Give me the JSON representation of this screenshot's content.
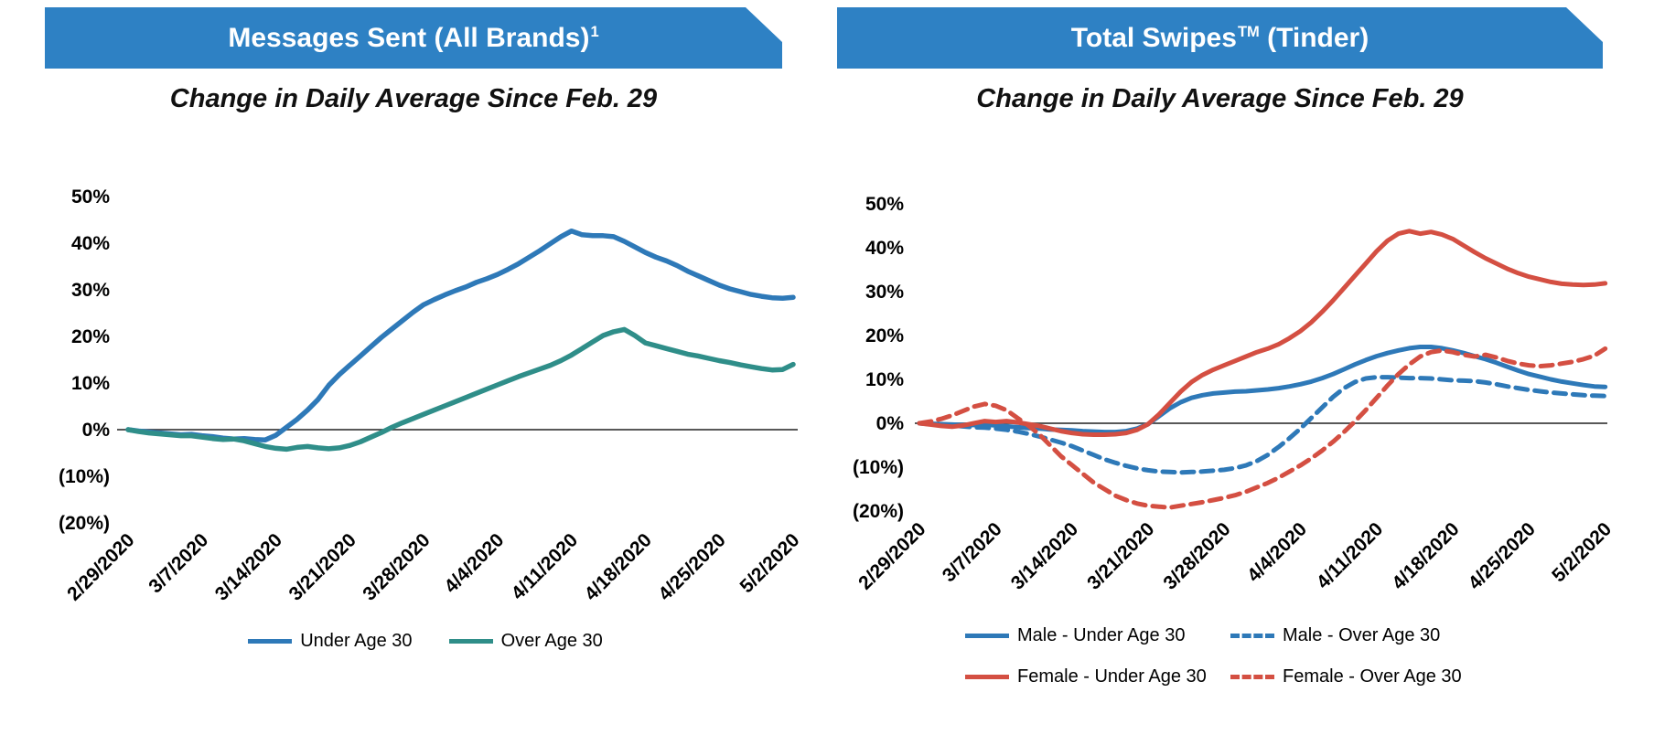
{
  "charts": [
    {
      "id": "messages-sent",
      "banner": {
        "title_main": "Messages Sent (All Brands)",
        "title_sup": "1",
        "title_end": "",
        "color": "#2E81C4",
        "text_color": "#ffffff"
      },
      "subtitle": "Change in Daily Average Since Feb. 29",
      "chart_data": {
        "type": "line",
        "x_unit": "day",
        "x_range": [
          "2/29/2020",
          "5/2/2020"
        ],
        "n_points": 64,
        "x_tick_labels": [
          "2/29/2020",
          "3/7/2020",
          "3/14/2020",
          "3/21/2020",
          "3/28/2020",
          "4/4/2020",
          "4/11/2020",
          "4/18/2020",
          "4/25/2020",
          "5/2/2020"
        ],
        "x_tick_indices": [
          0,
          7,
          14,
          21,
          28,
          35,
          42,
          49,
          56,
          63
        ],
        "y_ticks": [
          50,
          40,
          30,
          20,
          10,
          0,
          -10,
          -20
        ],
        "y_tick_labels": [
          "50%",
          "40%",
          "30%",
          "20%",
          "10%",
          "0%",
          "(10%)",
          "(20%)"
        ],
        "ylim": [
          -25,
          55
        ],
        "grid": false,
        "zero_line": true,
        "legend_position": "bottom",
        "series": [
          {
            "name": "Under Age 30",
            "color": "#2E79B8",
            "dash": "solid",
            "values": [
              0,
              -0.3,
              -0.5,
              -0.7,
              -0.9,
              -1.1,
              -1.0,
              -1.3,
              -1.5,
              -1.8,
              -2.0,
              -1.9,
              -2.1,
              -2.2,
              -1.2,
              0.5,
              2.2,
              4.2,
              6.5,
              9.5,
              11.8,
              13.8,
              15.8,
              17.8,
              19.8,
              21.6,
              23.4,
              25.2,
              26.8,
              27.9,
              28.9,
              29.8,
              30.6,
              31.6,
              32.4,
              33.3,
              34.4,
              35.6,
              37.0,
              38.4,
              39.9,
              41.4,
              42.6,
              41.8,
              41.6,
              41.6,
              41.4,
              40.4,
              39.2,
              38.0,
              37.0,
              36.2,
              35.2,
              34.0,
              33.0,
              32.0,
              31.0,
              30.2,
              29.6,
              29.0,
              28.6,
              28.3,
              28.2,
              28.4
            ]
          },
          {
            "name": "Over Age 30",
            "color": "#2F8E89",
            "dash": "solid",
            "values": [
              0,
              -0.4,
              -0.7,
              -0.9,
              -1.1,
              -1.3,
              -1.3,
              -1.6,
              -1.9,
              -2.1,
              -2.0,
              -2.4,
              -3.0,
              -3.6,
              -4.0,
              -4.2,
              -3.8,
              -3.6,
              -3.9,
              -4.1,
              -3.9,
              -3.4,
              -2.6,
              -1.6,
              -0.6,
              0.5,
              1.5,
              2.4,
              3.3,
              4.2,
              5.1,
              6.0,
              6.9,
              7.8,
              8.7,
              9.6,
              10.5,
              11.4,
              12.2,
              13.0,
              13.8,
              14.8,
              16.0,
              17.4,
              18.8,
              20.2,
              21.0,
              21.5,
              20.2,
              18.6,
              18.0,
              17.4,
              16.8,
              16.2,
              15.8,
              15.3,
              14.8,
              14.4,
              13.9,
              13.5,
              13.1,
              12.8,
              12.9,
              14.0
            ]
          }
        ]
      }
    },
    {
      "id": "total-swipes",
      "banner": {
        "title_main": "Total Swipes",
        "title_sup": "TM",
        "title_end": " (Tinder)",
        "color": "#2E81C4",
        "text_color": "#ffffff"
      },
      "subtitle": "Change in Daily Average Since Feb. 29",
      "chart_data": {
        "type": "line",
        "x_unit": "day",
        "x_range": [
          "2/29/2020",
          "5/2/2020"
        ],
        "n_points": 64,
        "x_tick_labels": [
          "2/29/2020",
          "3/7/2020",
          "3/14/2020",
          "3/21/2020",
          "3/28/2020",
          "4/4/2020",
          "4/11/2020",
          "4/18/2020",
          "4/25/2020",
          "5/2/2020"
        ],
        "x_tick_indices": [
          0,
          7,
          14,
          21,
          28,
          35,
          42,
          49,
          56,
          63
        ],
        "y_ticks": [
          50,
          40,
          30,
          20,
          10,
          0,
          -10,
          -20
        ],
        "y_tick_labels": [
          "50%",
          "40%",
          "30%",
          "20%",
          "10%",
          "0%",
          "(10%)",
          "(20%)"
        ],
        "ylim": [
          -25,
          55
        ],
        "grid": false,
        "zero_line": true,
        "legend_position": "bottom",
        "series": [
          {
            "name": "Male - Under Age 30",
            "color": "#2E79B8",
            "dash": "solid",
            "values": [
              0,
              -0.1,
              -0.2,
              -0.3,
              -0.4,
              -0.4,
              -0.3,
              -0.5,
              -0.7,
              -0.9,
              -1.1,
              -1.2,
              -1.4,
              -1.5,
              -1.6,
              -1.8,
              -1.9,
              -2.0,
              -2.0,
              -1.8,
              -1.2,
              -0.2,
              1.6,
              3.4,
              4.8,
              5.8,
              6.4,
              6.8,
              7.0,
              7.2,
              7.3,
              7.5,
              7.7,
              8.0,
              8.4,
              8.9,
              9.5,
              10.3,
              11.2,
              12.3,
              13.4,
              14.4,
              15.3,
              16.0,
              16.6,
              17.1,
              17.4,
              17.4,
              17.1,
              16.6,
              16.0,
              15.3,
              14.6,
              13.8,
              12.9,
              12.0,
              11.2,
              10.6,
              10.0,
              9.5,
              9.1,
              8.7,
              8.4,
              8.3
            ]
          },
          {
            "name": "Male - Over Age 30",
            "color": "#2E79B8",
            "dash": "dashed",
            "values": [
              0,
              -0.2,
              -0.4,
              -0.5,
              -0.7,
              -0.9,
              -1.0,
              -1.2,
              -1.5,
              -1.9,
              -2.4,
              -3.0,
              -3.7,
              -4.4,
              -5.2,
              -6.2,
              -7.2,
              -8.2,
              -9.0,
              -9.7,
              -10.3,
              -10.7,
              -11.0,
              -11.1,
              -11.2,
              -11.1,
              -11.0,
              -10.8,
              -10.6,
              -10.2,
              -9.6,
              -8.6,
              -7.2,
              -5.4,
              -3.4,
              -1.2,
              1.2,
              3.6,
              6.0,
              8.0,
              9.4,
              10.2,
              10.5,
              10.5,
              10.4,
              10.3,
              10.3,
              10.2,
              10.0,
              9.8,
              9.7,
              9.6,
              9.3,
              8.9,
              8.4,
              8.0,
              7.6,
              7.3,
              7.0,
              6.8,
              6.6,
              6.4,
              6.3,
              6.2
            ]
          },
          {
            "name": "Female - Under Age 30",
            "color": "#D44F42",
            "dash": "solid",
            "values": [
              0,
              -0.3,
              -0.6,
              -0.8,
              -0.5,
              0.0,
              0.5,
              0.3,
              0.5,
              0.2,
              -0.2,
              -0.6,
              -1.2,
              -1.8,
              -2.2,
              -2.5,
              -2.6,
              -2.6,
              -2.5,
              -2.2,
              -1.5,
              -0.2,
              2.0,
              4.6,
              7.2,
              9.4,
              11.0,
              12.2,
              13.2,
              14.2,
              15.2,
              16.2,
              17.0,
              18.0,
              19.4,
              21.0,
              23.0,
              25.4,
              28.0,
              30.8,
              33.6,
              36.4,
              39.2,
              41.6,
              43.2,
              43.8,
              43.2,
              43.6,
              43.0,
              42.0,
              40.5,
              39.0,
              37.6,
              36.4,
              35.2,
              34.2,
              33.4,
              32.8,
              32.2,
              31.8,
              31.6,
              31.5,
              31.6,
              31.9
            ]
          },
          {
            "name": "Female - Over Age 30",
            "color": "#D44F42",
            "dash": "dashed",
            "values": [
              0,
              0.4,
              1.0,
              1.8,
              2.8,
              3.8,
              4.4,
              4.0,
              3.0,
              1.2,
              -0.5,
              -2.5,
              -5.0,
              -7.5,
              -9.5,
              -11.5,
              -13.5,
              -15.0,
              -16.5,
              -17.5,
              -18.3,
              -18.8,
              -19.0,
              -19.2,
              -18.8,
              -18.4,
              -18.0,
              -17.5,
              -17.0,
              -16.4,
              -15.6,
              -14.6,
              -13.6,
              -12.4,
              -11.0,
              -9.6,
              -8.0,
              -6.2,
              -4.2,
              -2.0,
              0.4,
              3.0,
              5.8,
              8.6,
              11.2,
              13.4,
              15.2,
              16.2,
              16.6,
              16.2,
              15.6,
              15.2,
              15.6,
              15.0,
              14.2,
              13.6,
              13.2,
              13.0,
              13.2,
              13.6,
              14.0,
              14.6,
              15.4,
              17.0
            ]
          }
        ]
      }
    }
  ]
}
